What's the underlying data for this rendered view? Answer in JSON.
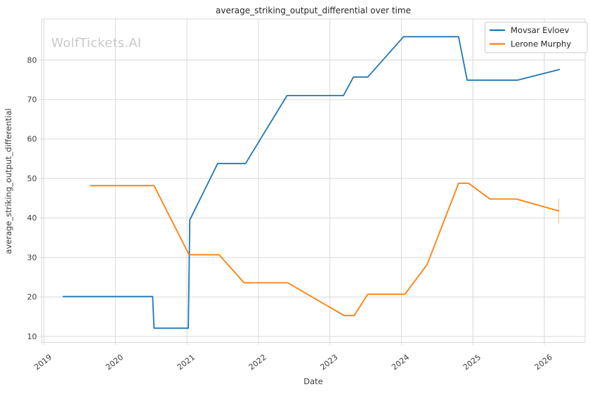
{
  "chart_data": {
    "type": "line",
    "title": "average_striking_output_differential over time",
    "xlabel": "Date",
    "ylabel": "average_striking_output_differential",
    "watermark": "WolfTickets.AI",
    "x_ticks": [
      2019,
      2020,
      2021,
      2022,
      2023,
      2024,
      2025,
      2026
    ],
    "y_ticks": [
      10,
      20,
      30,
      40,
      50,
      60,
      70,
      80
    ],
    "xlim": [
      2018.97,
      2026.57
    ],
    "ylim": [
      8.5,
      90.4
    ],
    "grid": true,
    "legend_position": "upper right",
    "colors": {
      "grid": "#d9d9d9",
      "tick_text": "#3b3b3b",
      "watermark": "#c9c9c9",
      "background": "#ffffff"
    },
    "series": [
      {
        "name": "Movsar Evloev",
        "color": "#1f77b4",
        "points": [
          [
            2019.27,
            20.1
          ],
          [
            2020.52,
            20.1
          ],
          [
            2020.54,
            12.1
          ],
          [
            2021.02,
            12.1
          ],
          [
            2021.04,
            39.5
          ],
          [
            2021.43,
            53.8
          ],
          [
            2021.82,
            53.8
          ],
          [
            2022.4,
            71.0
          ],
          [
            2023.19,
            71.0
          ],
          [
            2023.33,
            75.7
          ],
          [
            2023.53,
            75.7
          ],
          [
            2024.03,
            85.9
          ],
          [
            2024.8,
            85.9
          ],
          [
            2024.92,
            74.9
          ],
          [
            2025.62,
            74.9
          ],
          [
            2026.21,
            77.6
          ]
        ]
      },
      {
        "name": "Lerone Murphy",
        "color": "#ff7f0e",
        "points": [
          [
            2019.65,
            48.2
          ],
          [
            2020.54,
            48.2
          ],
          [
            2021.03,
            30.7
          ],
          [
            2021.45,
            30.7
          ],
          [
            2021.8,
            23.6
          ],
          [
            2022.41,
            23.6
          ],
          [
            2023.2,
            15.3
          ],
          [
            2023.34,
            15.3
          ],
          [
            2023.53,
            20.7
          ],
          [
            2024.05,
            20.7
          ],
          [
            2024.36,
            28.2
          ],
          [
            2024.8,
            48.8
          ],
          [
            2024.94,
            48.8
          ],
          [
            2025.24,
            44.8
          ],
          [
            2025.61,
            44.8
          ],
          [
            2026.2,
            41.8
          ]
        ],
        "error_bar": {
          "x": 2026.2,
          "y_low": 38.6,
          "y_high": 44.9
        }
      }
    ]
  }
}
